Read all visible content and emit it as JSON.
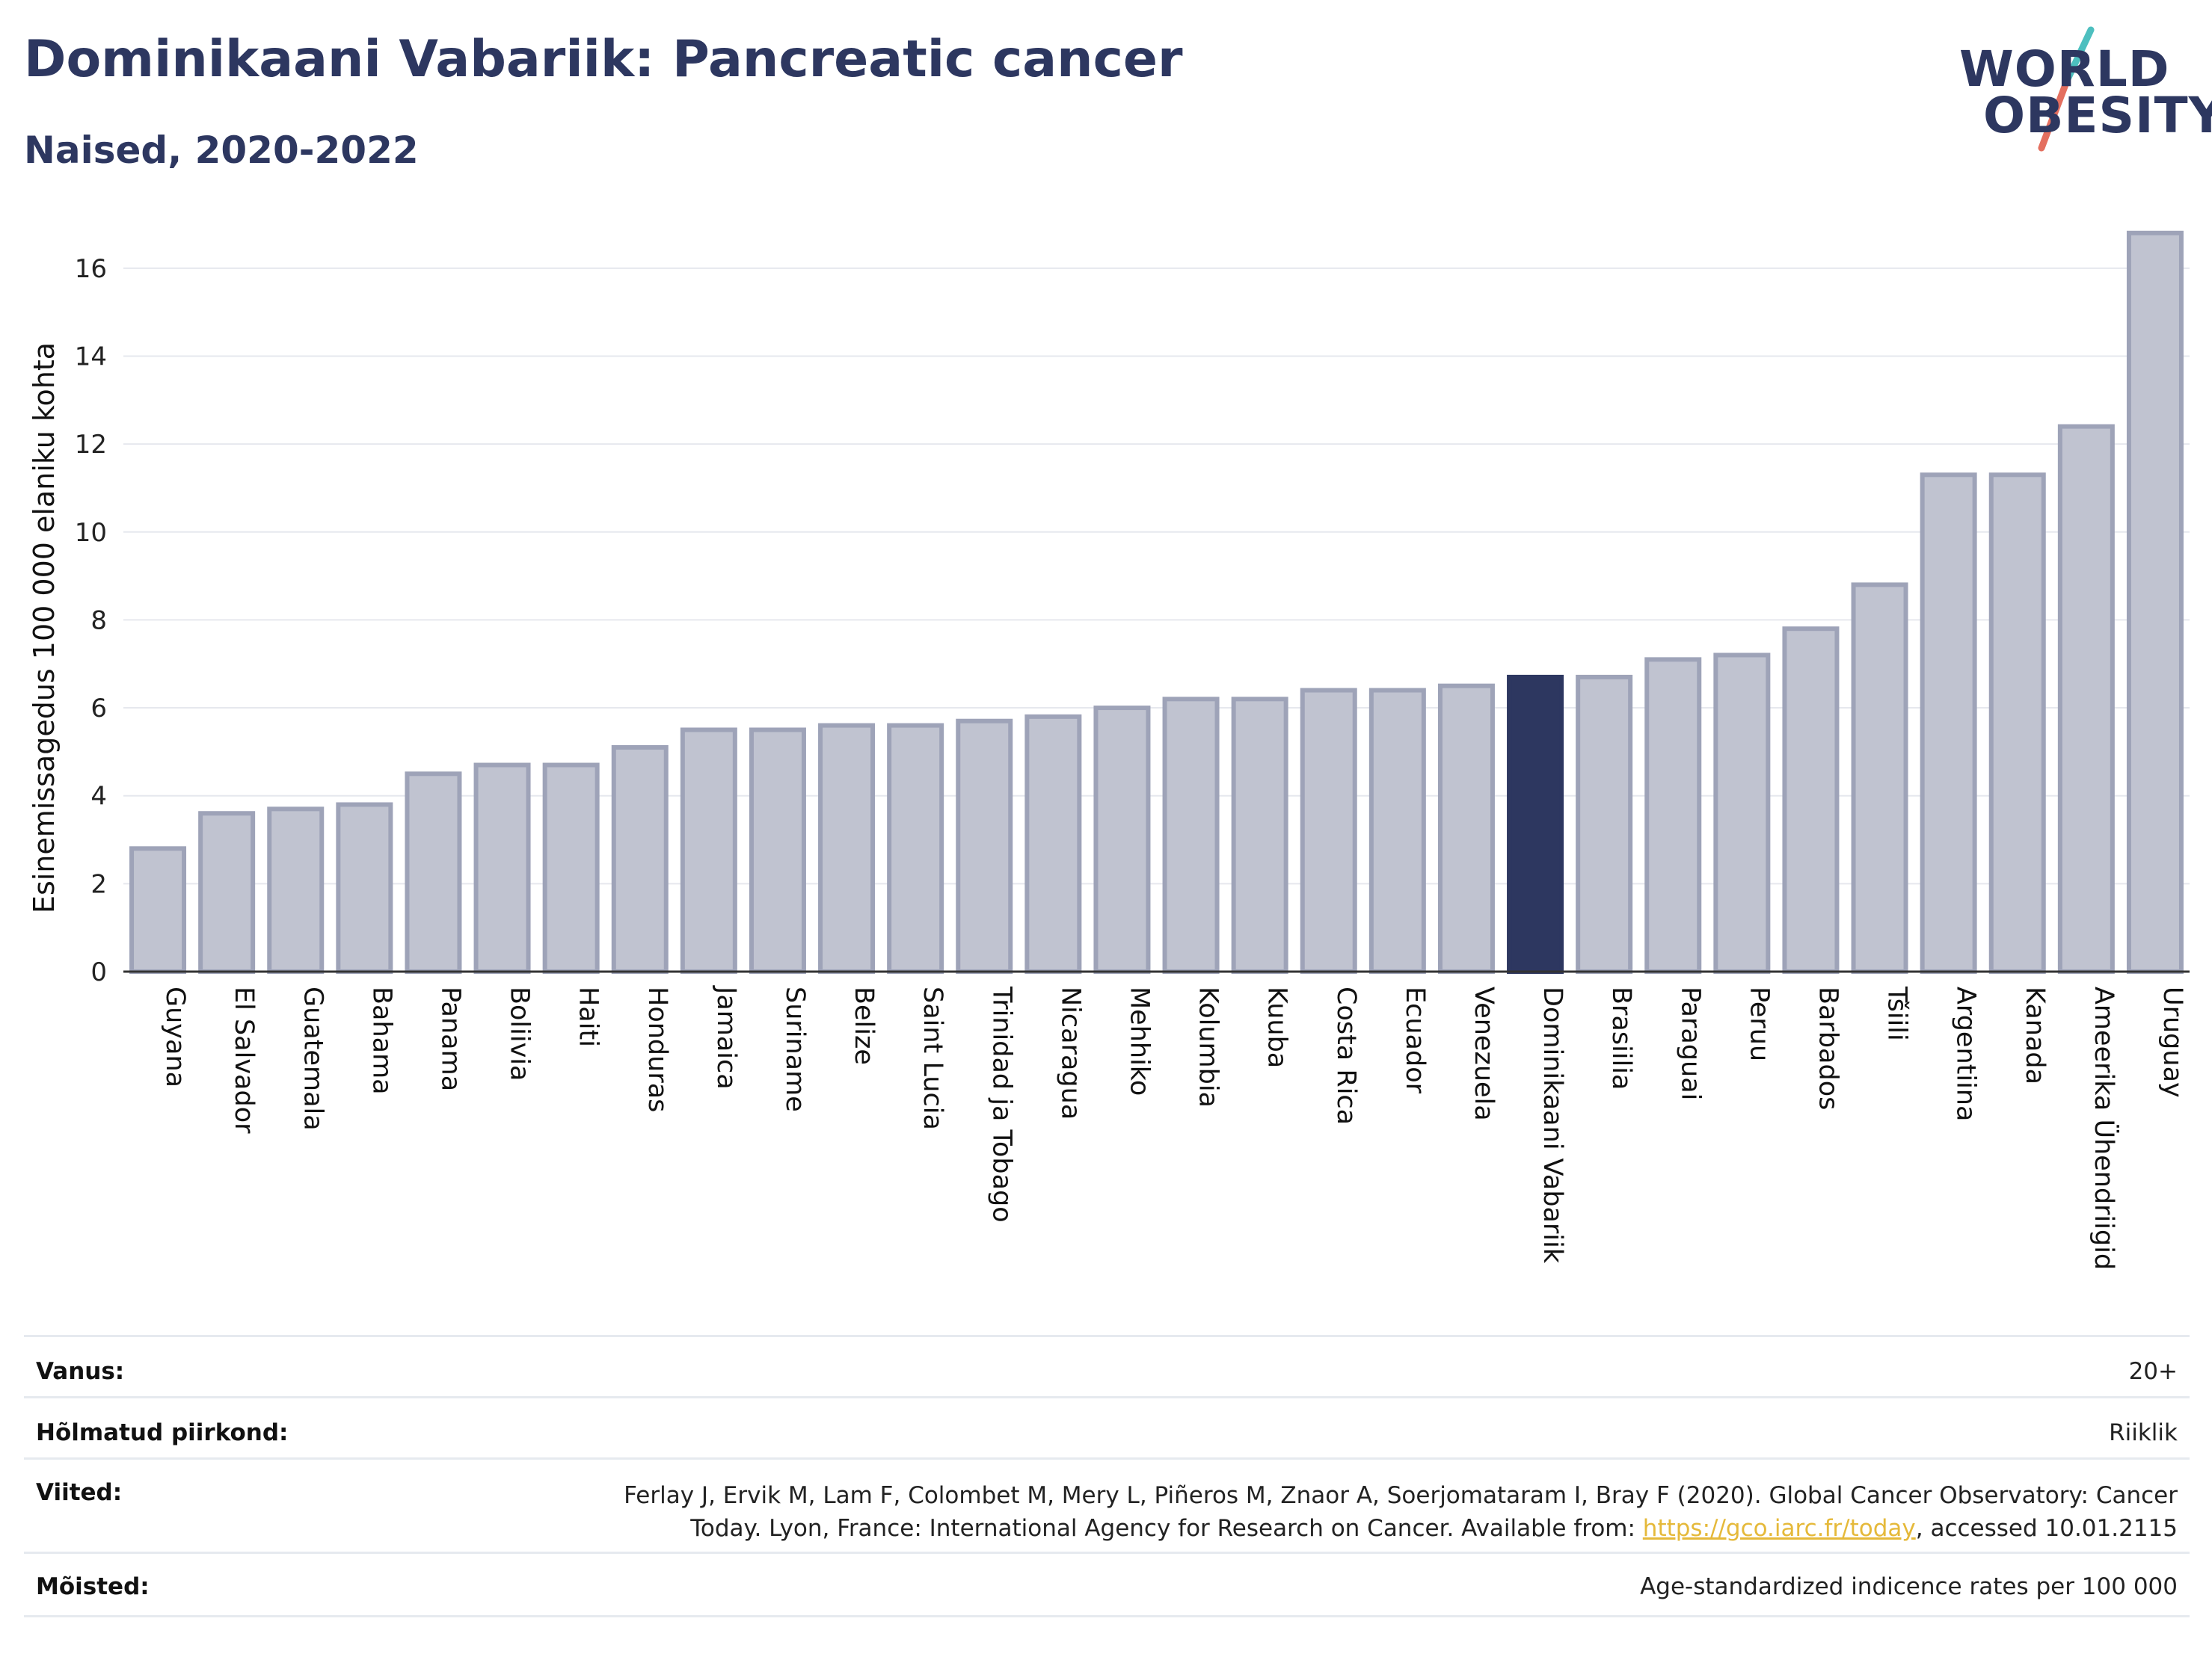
{
  "header": {
    "title": "Dominikaani Vabariik: Pancreatic cancer",
    "subtitle": "Naised, 2020-2022"
  },
  "logo": {
    "line1": "WORLD",
    "line2": "OBESITY",
    "accent_colors": [
      "#4dbfbf",
      "#e46f5f"
    ]
  },
  "chart_data": {
    "type": "bar",
    "ylabel": "Esinemissagedus 100 000 elaniku kohta",
    "ylim": [
      0,
      17
    ],
    "yticks": [
      0,
      2,
      4,
      6,
      8,
      10,
      12,
      14,
      16
    ],
    "grid": true,
    "highlight": "Dominikaani Vabariik",
    "colors": {
      "bar": "#c0c3d0",
      "bar_edge": "#9ea3b8",
      "highlight": "#2d3760",
      "grid": "#e6e8ee"
    },
    "categories": [
      "Guyana",
      "El Salvador",
      "Guatemala",
      "Bahama",
      "Panama",
      "Boliivia",
      "Haiti",
      "Honduras",
      "Jamaica",
      "Suriname",
      "Belize",
      "Saint Lucia",
      "Trinidad ja Tobago",
      "Nicaragua",
      "Mehhiko",
      "Kolumbia",
      "Kuuba",
      "Costa Rica",
      "Ecuador",
      "Venezuela",
      "Dominikaani Vabariik",
      "Brasiilia",
      "Paraguai",
      "Peruu",
      "Barbados",
      "Tšiili",
      "Argentiina",
      "Kanada",
      "Ameerika Ühendriigid",
      "Uruguay"
    ],
    "values": [
      2.8,
      3.6,
      3.7,
      3.8,
      4.5,
      4.7,
      4.7,
      5.1,
      5.5,
      5.5,
      5.6,
      5.6,
      5.7,
      5.8,
      6.0,
      6.2,
      6.2,
      6.4,
      6.4,
      6.5,
      6.7,
      6.7,
      7.1,
      7.2,
      7.8,
      8.8,
      11.3,
      11.3,
      12.4,
      16.8
    ]
  },
  "info": {
    "age_label": "Vanus:",
    "age_value": "20+",
    "coverage_label": "Hõlmatud piirkond:",
    "coverage_value": "Riiklik",
    "refs_label": "Viited:",
    "refs_line1": "Ferlay J, Ervik M, Lam F, Colombet M, Mery L, Piñeros M, Znaor A, Soerjomataram I, Bray F (2020). Global Cancer Observatory: Cancer",
    "refs_line2_pre": "Today. Lyon, France: International Agency for Research on Cancer. Available from: ",
    "refs_link": "https://gco.iarc.fr/today",
    "refs_line2_post": ", accessed 10.01.2115",
    "defs_label": "Mõisted:",
    "defs_value": "Age-standardized indicence rates per 100 000"
  }
}
